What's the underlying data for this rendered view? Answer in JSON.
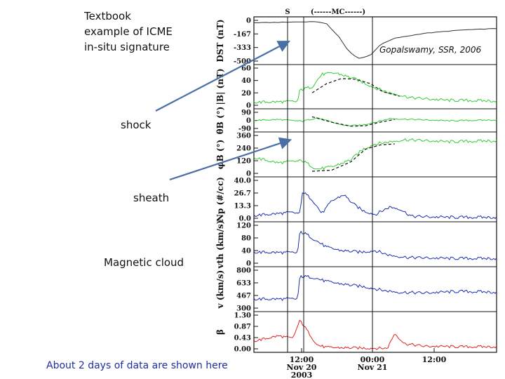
{
  "annotations": {
    "textbook_lines": [
      "Textbook",
      "example of ICME",
      "in-situ signature"
    ],
    "shock": "shock",
    "sheath": "sheath",
    "magnetic_cloud": "Magnetic cloud",
    "caption": "About 2 days of data are shown here",
    "credit": "Gopalswamy, SSR, 2006"
  },
  "colors": {
    "dst": "#333333",
    "magnetic": "#33cc33",
    "plasma": "#1a2fb0",
    "beta": "#dd2222",
    "arrow": "#4a6fa5",
    "model": "#111111"
  },
  "chart_data": {
    "type": "line",
    "top_markers": {
      "shock": "S",
      "cloud": "(------MC------)"
    },
    "x_tick_labels": [
      {
        "lines": [
          "12:00",
          "Nov 20",
          "2003"
        ]
      },
      {
        "lines": [
          "00:00",
          "Nov 21"
        ]
      },
      {
        "lines": [
          "12:00"
        ]
      }
    ],
    "event_markers": [
      "shock",
      "cloud-start",
      "cloud-end"
    ],
    "panels": [
      {
        "id": "dst",
        "ylabel": "DST (nT)",
        "ticks": [
          "0",
          "-167",
          "-333",
          "-500"
        ],
        "ylim": [
          -500,
          0
        ],
        "color": "dst",
        "series": [
          {
            "x": 0,
            "y": -30
          },
          {
            "x": 0.26,
            "y": -15
          },
          {
            "x": 0.3,
            "y": -45
          },
          {
            "x": 0.35,
            "y": -200
          },
          {
            "x": 0.39,
            "y": -380
          },
          {
            "x": 0.43,
            "y": -470
          },
          {
            "x": 0.48,
            "y": -430
          },
          {
            "x": 0.52,
            "y": -300
          },
          {
            "x": 0.58,
            "y": -220
          },
          {
            "x": 0.7,
            "y": -160
          },
          {
            "x": 0.85,
            "y": -120
          },
          {
            "x": 1,
            "y": -100
          }
        ]
      },
      {
        "id": "b",
        "ylabel": "|B| (nT)",
        "ticks": [
          "60",
          "40",
          "20",
          "0"
        ],
        "ylim": [
          0,
          60
        ],
        "color": "magnetic",
        "series": [
          {
            "x": 0,
            "y": 5
          },
          {
            "x": 0.18,
            "y": 6
          },
          {
            "x": 0.19,
            "y": 25
          },
          {
            "x": 0.24,
            "y": 30
          },
          {
            "x": 0.28,
            "y": 50
          },
          {
            "x": 0.34,
            "y": 52
          },
          {
            "x": 0.42,
            "y": 42
          },
          {
            "x": 0.5,
            "y": 28
          },
          {
            "x": 0.56,
            "y": 20
          },
          {
            "x": 0.65,
            "y": 12
          },
          {
            "x": 0.8,
            "y": 8
          },
          {
            "x": 1,
            "y": 7
          }
        ],
        "model": [
          {
            "x": 0.24,
            "y": 20
          },
          {
            "x": 0.3,
            "y": 35
          },
          {
            "x": 0.36,
            "y": 43
          },
          {
            "x": 0.42,
            "y": 42
          },
          {
            "x": 0.48,
            "y": 35
          },
          {
            "x": 0.53,
            "y": 22
          },
          {
            "x": 0.6,
            "y": 15
          }
        ]
      },
      {
        "id": "theta",
        "ylabel": "θB (°)",
        "ticks": [
          "90",
          "0",
          "-90"
        ],
        "ylim": [
          -90,
          90
        ],
        "color": "magnetic",
        "series": [
          {
            "x": 0,
            "y": 0
          },
          {
            "x": 0.1,
            "y": 10
          },
          {
            "x": 0.2,
            "y": -10
          },
          {
            "x": 0.26,
            "y": 30
          },
          {
            "x": 0.32,
            "y": -20
          },
          {
            "x": 0.38,
            "y": -60
          },
          {
            "x": 0.44,
            "y": -55
          },
          {
            "x": 0.5,
            "y": -20
          },
          {
            "x": 0.56,
            "y": 20
          },
          {
            "x": 0.66,
            "y": 10
          },
          {
            "x": 0.8,
            "y": -5
          },
          {
            "x": 1,
            "y": 5
          }
        ],
        "model": [
          {
            "x": 0.24,
            "y": 40
          },
          {
            "x": 0.32,
            "y": -20
          },
          {
            "x": 0.4,
            "y": -65
          },
          {
            "x": 0.46,
            "y": -60
          },
          {
            "x": 0.52,
            "y": -20
          },
          {
            "x": 0.58,
            "y": 10
          }
        ]
      },
      {
        "id": "phi",
        "ylabel": "φB (°)",
        "ticks": [
          "360",
          "240",
          "120",
          "0"
        ],
        "ylim": [
          0,
          360
        ],
        "color": "magnetic",
        "series": [
          {
            "x": 0,
            "y": 150
          },
          {
            "x": 0.1,
            "y": 100
          },
          {
            "x": 0.2,
            "y": 120
          },
          {
            "x": 0.26,
            "y": 40
          },
          {
            "x": 0.32,
            "y": 60
          },
          {
            "x": 0.4,
            "y": 130
          },
          {
            "x": 0.45,
            "y": 230
          },
          {
            "x": 0.5,
            "y": 280
          },
          {
            "x": 0.56,
            "y": 300
          },
          {
            "x": 0.62,
            "y": 320
          },
          {
            "x": 0.8,
            "y": 300
          },
          {
            "x": 1,
            "y": 310
          }
        ],
        "model": [
          {
            "x": 0.24,
            "y": 20
          },
          {
            "x": 0.32,
            "y": 30
          },
          {
            "x": 0.4,
            "y": 110
          },
          {
            "x": 0.46,
            "y": 230
          },
          {
            "x": 0.52,
            "y": 270
          },
          {
            "x": 0.58,
            "y": 280
          }
        ]
      },
      {
        "id": "np",
        "ylabel": "Np (#/cc)",
        "ticks": [
          "40.0",
          "26.7",
          "13.3",
          "0.0"
        ],
        "ylim": [
          0,
          40
        ],
        "color": "plasma",
        "series": [
          {
            "x": 0,
            "y": 3
          },
          {
            "x": 0.15,
            "y": 6
          },
          {
            "x": 0.19,
            "y": 5
          },
          {
            "x": 0.2,
            "y": 28
          },
          {
            "x": 0.24,
            "y": 20
          },
          {
            "x": 0.28,
            "y": 5
          },
          {
            "x": 0.32,
            "y": 18
          },
          {
            "x": 0.37,
            "y": 25
          },
          {
            "x": 0.41,
            "y": 15
          },
          {
            "x": 0.45,
            "y": 8
          },
          {
            "x": 0.5,
            "y": 4
          },
          {
            "x": 0.56,
            "y": 12
          },
          {
            "x": 0.6,
            "y": 10
          },
          {
            "x": 0.65,
            "y": 2
          },
          {
            "x": 0.8,
            "y": 1
          },
          {
            "x": 1,
            "y": 1
          }
        ]
      },
      {
        "id": "vth",
        "ylabel": "vth (km/s)",
        "ticks": [
          "120",
          "80",
          "40",
          "0"
        ],
        "ylim": [
          0,
          120
        ],
        "color": "plasma",
        "series": [
          {
            "x": 0,
            "y": 35
          },
          {
            "x": 0.18,
            "y": 33
          },
          {
            "x": 0.19,
            "y": 100
          },
          {
            "x": 0.22,
            "y": 90
          },
          {
            "x": 0.26,
            "y": 70
          },
          {
            "x": 0.3,
            "y": 50
          },
          {
            "x": 0.36,
            "y": 40
          },
          {
            "x": 0.44,
            "y": 35
          },
          {
            "x": 0.5,
            "y": 40
          },
          {
            "x": 0.56,
            "y": 25
          },
          {
            "x": 0.64,
            "y": 18
          },
          {
            "x": 0.8,
            "y": 15
          },
          {
            "x": 1,
            "y": 15
          }
        ]
      },
      {
        "id": "v",
        "ylabel": "v (km/s)",
        "ticks": [
          "800",
          "633",
          "467",
          "300"
        ],
        "ylim": [
          300,
          800
        ],
        "color": "plasma",
        "series": [
          {
            "x": 0,
            "y": 420
          },
          {
            "x": 0.18,
            "y": 420
          },
          {
            "x": 0.19,
            "y": 720
          },
          {
            "x": 0.24,
            "y": 710
          },
          {
            "x": 0.3,
            "y": 650
          },
          {
            "x": 0.38,
            "y": 610
          },
          {
            "x": 0.46,
            "y": 580
          },
          {
            "x": 0.54,
            "y": 530
          },
          {
            "x": 0.6,
            "y": 510
          },
          {
            "x": 0.7,
            "y": 500
          },
          {
            "x": 0.85,
            "y": 520
          },
          {
            "x": 1,
            "y": 510
          }
        ]
      },
      {
        "id": "beta",
        "ylabel": "β",
        "ticks": [
          "1.30",
          "0.87",
          "0.43",
          "0.00"
        ],
        "ylim": [
          0,
          1.3
        ],
        "color": "beta",
        "series": [
          {
            "x": 0,
            "y": 0.3
          },
          {
            "x": 0.1,
            "y": 0.5
          },
          {
            "x": 0.16,
            "y": 0.4
          },
          {
            "x": 0.19,
            "y": 1.1
          },
          {
            "x": 0.22,
            "y": 0.7
          },
          {
            "x": 0.26,
            "y": 0.15
          },
          {
            "x": 0.3,
            "y": 0.05
          },
          {
            "x": 0.45,
            "y": 0.03
          },
          {
            "x": 0.55,
            "y": 0.02
          },
          {
            "x": 0.58,
            "y": 0.6
          },
          {
            "x": 0.62,
            "y": 0.2
          },
          {
            "x": 0.7,
            "y": 0.1
          },
          {
            "x": 0.85,
            "y": 0.08
          },
          {
            "x": 1,
            "y": 0.08
          }
        ]
      }
    ]
  }
}
